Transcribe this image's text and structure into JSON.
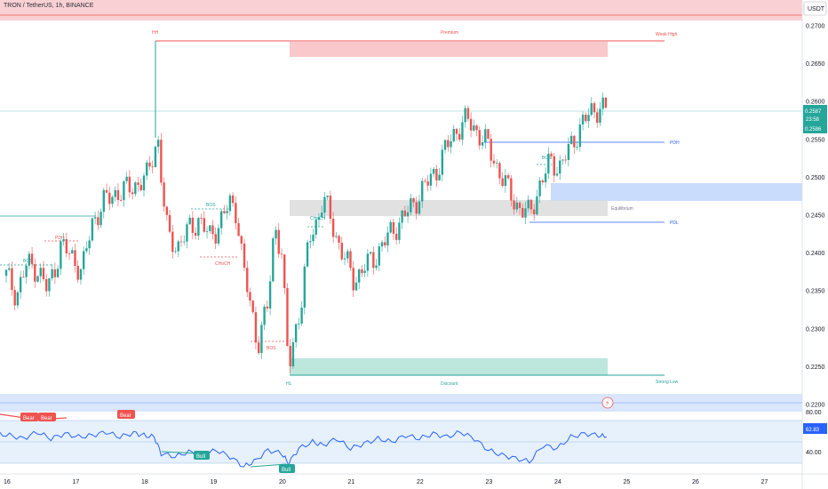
{
  "header": {
    "symbol_title": "TRON / TetherUS, 1h, BINANCE",
    "currency": "USDT"
  },
  "price_axis": {
    "ticks": [
      "0.2700",
      "0.2650",
      "0.2600",
      "0.2550",
      "0.2500",
      "0.2450",
      "0.2400",
      "0.2350",
      "0.2300",
      "0.2250",
      "0.2200"
    ],
    "last_price": "0.2587",
    "countdown": "23:58",
    "prev_price": "0.2586"
  },
  "time_axis": {
    "ticks": [
      "16",
      "17",
      "18",
      "19",
      "20",
      "21",
      "22",
      "23",
      "24",
      "25",
      "26",
      "27"
    ]
  },
  "zones": {
    "hh": "HH",
    "premium": "Premium",
    "weak_high": "Weak High",
    "pdh": "PDH",
    "equilibrium": "Equilibrium",
    "pdl": "PDL",
    "hl": "HL",
    "discount": "Discount",
    "strong_low": "Strong Low"
  },
  "structure": {
    "bos": "BOS",
    "choch": "CHoCH",
    "pdh_small": "PDH"
  },
  "oscillator": {
    "ticks": [
      "80.00",
      "40.00"
    ],
    "value": "62.83",
    "bear": "Bear",
    "bull": "Bull"
  },
  "colors": {
    "up": "#26a69a",
    "down": "#ef5350",
    "premium": "#f8c8cb",
    "discount": "#bde6dc",
    "equilibrium": "#d9dadb",
    "ob_blue": "#c9dcfb",
    "pdh_line": "#2962ff",
    "osc_line": "#2962ff"
  },
  "chart_data": {
    "type": "candlestick",
    "ylim": [
      0.2192,
      0.2727
    ],
    "xlim": [
      15.85,
      27.75
    ],
    "up_color": "#26a69a",
    "down_color": "#ef5350",
    "close_path": [
      [
        16.0,
        0.237
      ],
      [
        16.15,
        0.2345
      ],
      [
        16.3,
        0.2385
      ],
      [
        16.45,
        0.238
      ],
      [
        16.6,
        0.235
      ],
      [
        16.8,
        0.241
      ],
      [
        17.0,
        0.239
      ],
      [
        17.1,
        0.2375
      ],
      [
        17.25,
        0.244
      ],
      [
        17.4,
        0.2465
      ],
      [
        17.6,
        0.248
      ],
      [
        17.8,
        0.2485
      ],
      [
        17.95,
        0.2495
      ],
      [
        18.05,
        0.25
      ],
      [
        18.2,
        0.2555
      ],
      [
        18.27,
        0.248
      ],
      [
        18.35,
        0.242
      ],
      [
        18.5,
        0.241
      ],
      [
        18.65,
        0.243
      ],
      [
        18.8,
        0.2445
      ],
      [
        18.95,
        0.242
      ],
      [
        19.1,
        0.244
      ],
      [
        19.25,
        0.2465
      ],
      [
        19.35,
        0.2455
      ],
      [
        19.45,
        0.2375
      ],
      [
        19.55,
        0.233
      ],
      [
        19.65,
        0.228
      ],
      [
        19.8,
        0.233
      ],
      [
        19.9,
        0.244
      ],
      [
        20.0,
        0.24
      ],
      [
        20.1,
        0.2245
      ],
      [
        20.2,
        0.23
      ],
      [
        20.3,
        0.234
      ],
      [
        20.4,
        0.242
      ],
      [
        20.5,
        0.244
      ],
      [
        20.6,
        0.247
      ],
      [
        20.7,
        0.245
      ],
      [
        20.8,
        0.242
      ],
      [
        20.9,
        0.2395
      ],
      [
        21.05,
        0.2365
      ],
      [
        21.2,
        0.238
      ],
      [
        21.35,
        0.2395
      ],
      [
        21.5,
        0.2415
      ],
      [
        21.65,
        0.2435
      ],
      [
        21.8,
        0.245
      ],
      [
        21.95,
        0.247
      ],
      [
        22.1,
        0.249
      ],
      [
        22.25,
        0.251
      ],
      [
        22.4,
        0.254
      ],
      [
        22.55,
        0.2565
      ],
      [
        22.7,
        0.2575
      ],
      [
        22.85,
        0.256
      ],
      [
        23.0,
        0.254
      ],
      [
        23.15,
        0.251
      ],
      [
        23.3,
        0.248
      ],
      [
        23.45,
        0.246
      ],
      [
        23.6,
        0.245
      ],
      [
        23.75,
        0.249
      ],
      [
        23.9,
        0.252
      ],
      [
        24.05,
        0.2515
      ],
      [
        24.2,
        0.254
      ],
      [
        24.35,
        0.257
      ],
      [
        24.5,
        0.2585
      ],
      [
        24.62,
        0.2595
      ],
      [
        24.72,
        0.2587
      ]
    ],
    "osc_path": [
      [
        15.85,
        64
      ],
      [
        16.05,
        62
      ],
      [
        16.25,
        58
      ],
      [
        16.45,
        66
      ],
      [
        16.65,
        58
      ],
      [
        16.85,
        64
      ],
      [
        17.05,
        60
      ],
      [
        17.25,
        62
      ],
      [
        17.45,
        66
      ],
      [
        17.65,
        60
      ],
      [
        17.85,
        65
      ],
      [
        18.0,
        62
      ],
      [
        18.15,
        60
      ],
      [
        18.25,
        40
      ],
      [
        18.45,
        36
      ],
      [
        18.65,
        42
      ],
      [
        18.85,
        38
      ],
      [
        19.05,
        44
      ],
      [
        19.25,
        36
      ],
      [
        19.45,
        24
      ],
      [
        19.6,
        30
      ],
      [
        19.8,
        44
      ],
      [
        20.0,
        40
      ],
      [
        20.1,
        28
      ],
      [
        20.25,
        46
      ],
      [
        20.45,
        54
      ],
      [
        20.6,
        50
      ],
      [
        20.8,
        58
      ],
      [
        21.0,
        46
      ],
      [
        21.2,
        52
      ],
      [
        21.4,
        58
      ],
      [
        21.6,
        54
      ],
      [
        21.8,
        62
      ],
      [
        22.0,
        58
      ],
      [
        22.2,
        64
      ],
      [
        22.4,
        60
      ],
      [
        22.6,
        66
      ],
      [
        22.8,
        58
      ],
      [
        23.0,
        44
      ],
      [
        23.2,
        38
      ],
      [
        23.4,
        34
      ],
      [
        23.6,
        30
      ],
      [
        23.8,
        50
      ],
      [
        24.0,
        46
      ],
      [
        24.2,
        60
      ],
      [
        24.4,
        64
      ],
      [
        24.6,
        62
      ],
      [
        24.72,
        60
      ]
    ]
  }
}
